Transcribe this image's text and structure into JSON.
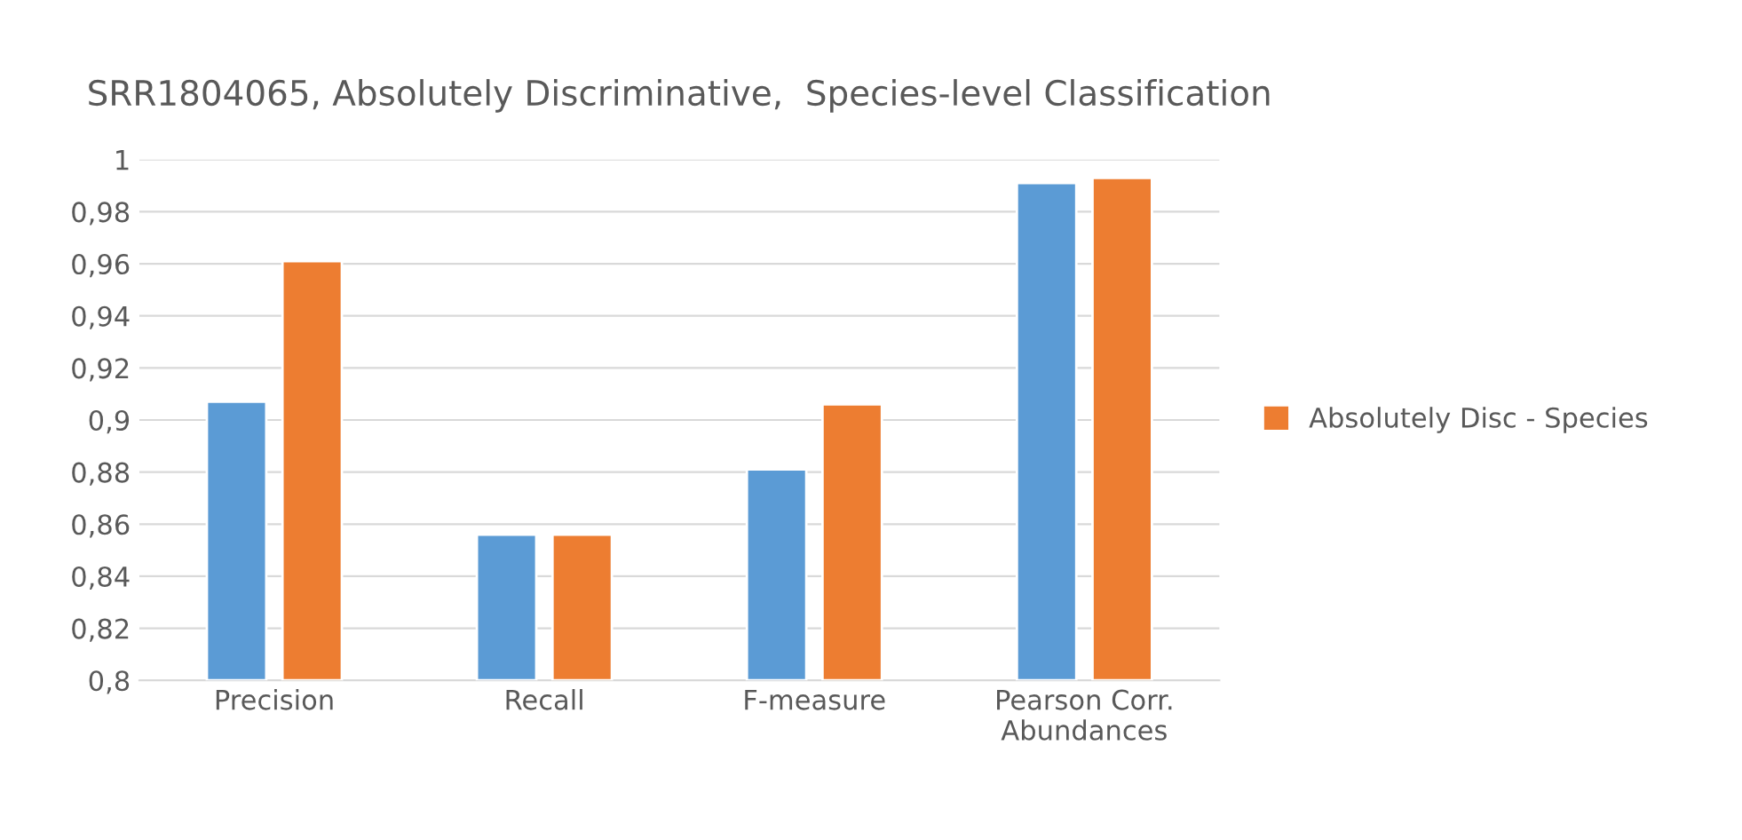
{
  "chart_data": {
    "type": "bar",
    "title": "SRR1804065, Absolutely Discriminative,  Species-level Classification",
    "categories": [
      "Precision",
      "Recall",
      "F-measure",
      "Pearson Corr.\nAbundances"
    ],
    "series": [
      {
        "color": "#5b9bd5",
        "values": [
          0.907,
          0.856,
          0.881,
          0.991
        ]
      },
      {
        "name": "Absolutely Disc - Species",
        "color": "#ed7d31",
        "values": [
          0.961,
          0.856,
          0.906,
          0.993
        ]
      }
    ],
    "ylim": [
      0.8,
      1
    ],
    "yticks": [
      {
        "value": 0.8,
        "label": "0,8"
      },
      {
        "value": 0.82,
        "label": "0,82"
      },
      {
        "value": 0.84,
        "label": "0,84"
      },
      {
        "value": 0.86,
        "label": "0,86"
      },
      {
        "value": 0.88,
        "label": "0,88"
      },
      {
        "value": 0.9,
        "label": "0,9"
      },
      {
        "value": 0.92,
        "label": "0,92"
      },
      {
        "value": 0.94,
        "label": "0,94"
      },
      {
        "value": 0.96,
        "label": "0,96"
      },
      {
        "value": 0.98,
        "label": "0,98"
      },
      {
        "value": 1,
        "label": "1"
      }
    ],
    "grid": "y",
    "legend": "right"
  }
}
